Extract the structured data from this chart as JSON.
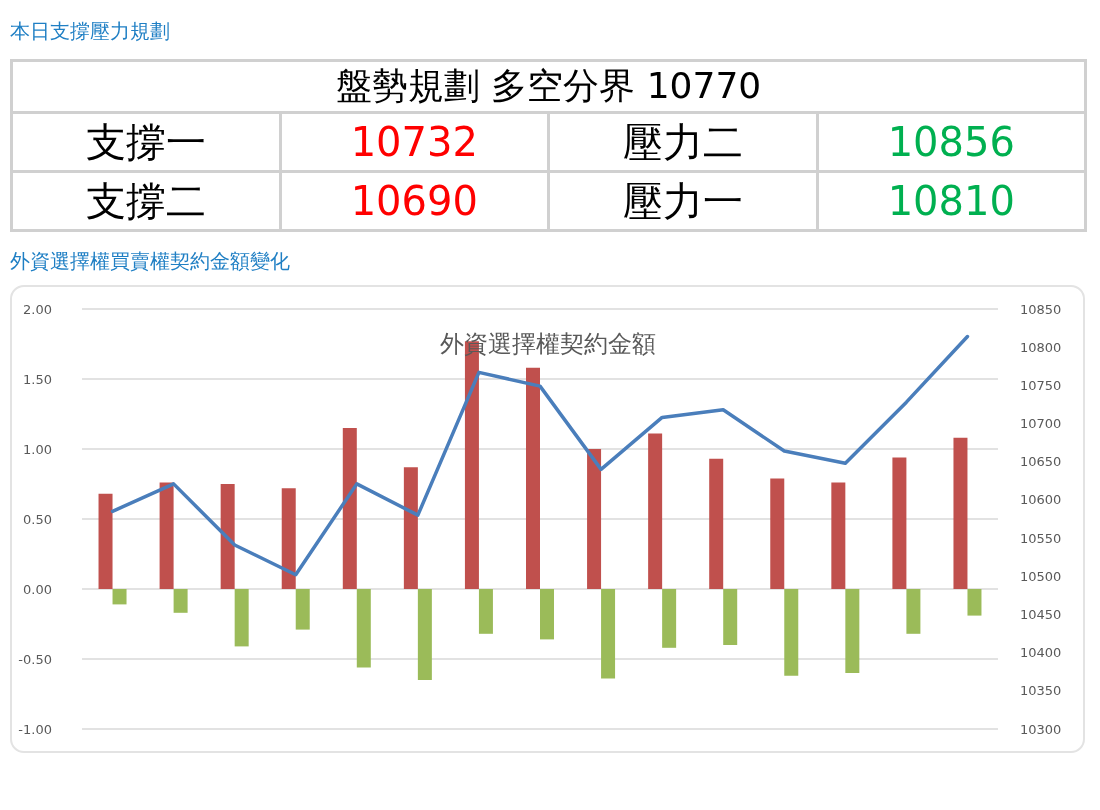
{
  "chart_data": [
    {
      "type": "other",
      "title": "本日支撐壓力規劃",
      "subtitle": "盤勢規劃 多空分界 10770",
      "annotations": [
        "支撐一",
        "10732",
        "壓力二",
        "10856",
        "支撐二",
        "10690",
        "壓力一",
        "10810"
      ],
      "colors": [
        "#000000",
        "#ff0000",
        "#000000",
        "#00b050",
        "#000000",
        "#ff0000",
        "#000000",
        "#00b050"
      ]
    },
    {
      "type": "bar",
      "title": "外資選擇權契約金額",
      "subtitle": "外資選擇權買賣權契約金額變化",
      "categories": [
        null,
        null,
        null,
        null,
        null,
        null,
        null,
        null,
        null,
        null,
        null,
        null,
        null,
        null,
        null
      ],
      "series": [
        {
          "type": "bar",
          "color": "#c0504d",
          "values": [
            0.68,
            0.76,
            0.75,
            0.72,
            1.15,
            0.87,
            1.77,
            1.58,
            1.0,
            1.11,
            0.93,
            0.79,
            0.76,
            0.94,
            1.08
          ]
        },
        {
          "type": "bar",
          "color": "#9bbb59",
          "values": [
            -0.11,
            -0.17,
            -0.41,
            -0.29,
            -0.56,
            -0.65,
            -0.32,
            -0.36,
            -0.64,
            -0.42,
            -0.4,
            -0.62,
            -0.6,
            -0.32,
            -0.19
          ]
        },
        {
          "type": "line",
          "axis": "y2",
          "color": "#4a7ebb",
          "values": [
            10585,
            10621,
            10541,
            10502,
            10621,
            10580,
            10767,
            10749,
            10640,
            10708,
            10718,
            10664,
            10648,
            10728,
            10814
          ]
        }
      ],
      "ylim": [
        -1,
        2
      ],
      "yticks": [
        {
          "value": -1,
          "label": "-1.00"
        },
        {
          "value": -0.5,
          "label": "-0.50"
        },
        {
          "value": 0,
          "label": "0.00"
        },
        {
          "value": 0.5,
          "label": "0.50"
        },
        {
          "value": 1,
          "label": "1.00"
        },
        {
          "value": 1.5,
          "label": "1.50"
        },
        {
          "value": 2,
          "label": "2.00"
        }
      ],
      "y2lim": [
        10300,
        10850
      ],
      "y2ticks": [
        10300,
        10350,
        10400,
        10450,
        10500,
        10550,
        10600,
        10650,
        10700,
        10750,
        10800,
        10850
      ],
      "grid": "y",
      "marker": "none",
      "line_style": "solid"
    }
  ]
}
